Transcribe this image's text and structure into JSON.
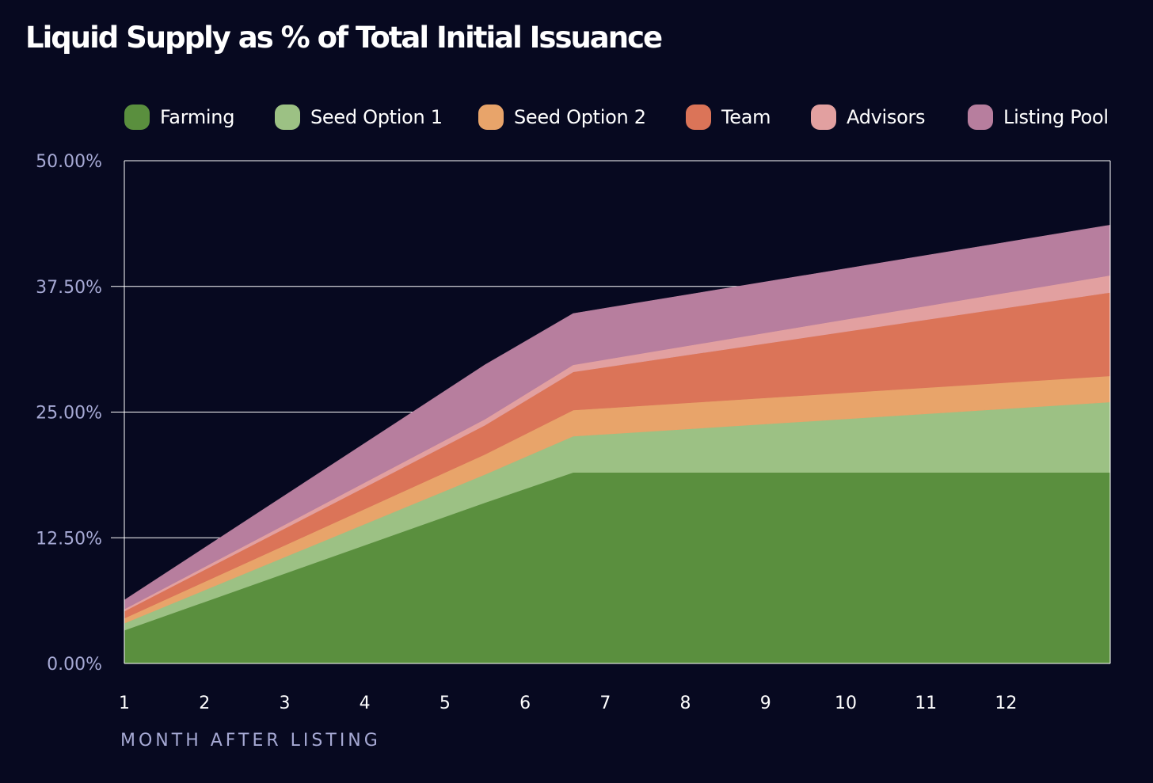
{
  "title": "Liquid Supply as % of Total Initial Issuance",
  "legend": [
    {
      "label": "Farming",
      "color": "#5a8f3e"
    },
    {
      "label": "Seed Option 1",
      "color": "#9cc184"
    },
    {
      "label": "Seed Option 2",
      "color": "#e8a46a"
    },
    {
      "label": "Team",
      "color": "#db7458"
    },
    {
      "label": "Advisors",
      "color": "#e2a0a0"
    },
    {
      "label": "Listing Pool",
      "color": "#b77e9e"
    }
  ],
  "colors": {
    "background": "#070920",
    "gridline": "#ffffff",
    "axis_text": "#a6a9d4",
    "tick_text": "#ffffff"
  },
  "chart_data": {
    "type": "area",
    "stacked": true,
    "title": "Liquid Supply as % of Total Initial Issuance",
    "xlabel": "MONTH AFTER LISTING",
    "ylabel": "",
    "xlim": [
      1,
      13.3
    ],
    "ylim": [
      0,
      50
    ],
    "y_ticks": [
      "0.00%",
      "12.50%",
      "25.00%",
      "37.50%",
      "50.00%"
    ],
    "y_tick_values": [
      0,
      12.5,
      25,
      37.5,
      50
    ],
    "x_ticks": [
      "1",
      "2",
      "3",
      "4",
      "5",
      "6",
      "7",
      "8",
      "9",
      "10",
      "11",
      "12"
    ],
    "x_tick_values": [
      1,
      2,
      3,
      4,
      5,
      6,
      7,
      8,
      9,
      10,
      11,
      12
    ],
    "x": [
      1,
      5.5,
      6.6,
      13.3
    ],
    "series": [
      {
        "name": "Farming",
        "values": [
          3.3,
          16.0,
          19.0,
          19.0
        ]
      },
      {
        "name": "Seed Option 1",
        "values": [
          0.7,
          2.8,
          3.6,
          7.0
        ]
      },
      {
        "name": "Seed Option 2",
        "values": [
          0.5,
          2.0,
          2.6,
          2.6
        ]
      },
      {
        "name": "Team",
        "values": [
          0.7,
          2.9,
          3.8,
          8.3
        ]
      },
      {
        "name": "Advisors",
        "values": [
          0.2,
          0.6,
          0.7,
          1.7
        ]
      },
      {
        "name": "Listing Pool",
        "values": [
          0.9,
          5.4,
          5.1,
          5.0
        ]
      }
    ],
    "grid": true,
    "legend_position": "top"
  }
}
